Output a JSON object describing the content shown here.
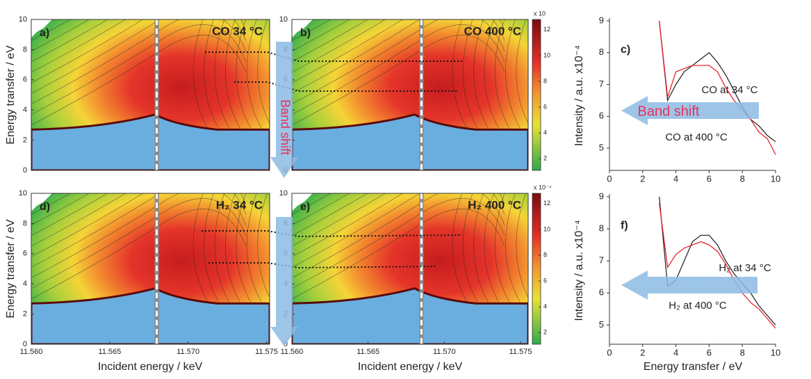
{
  "chart_data": [
    {
      "type": "contour",
      "panel_label": "a)",
      "title": "CO 34 °C",
      "ylabel": "Energy transfer / eV",
      "annotation": "Band shift",
      "xlim": [
        11.56,
        11.5752
      ],
      "ylim": [
        0,
        10
      ],
      "yticks": [
        0,
        2,
        4,
        6,
        8,
        10
      ],
      "marker_x": 11.568
    },
    {
      "type": "contour",
      "panel_label": "b)",
      "title": "CO 400 °C",
      "xlim": [
        11.56,
        11.5755
      ],
      "ylim": [
        0,
        10
      ],
      "yticks": [
        0,
        2,
        4,
        6,
        8,
        10
      ],
      "marker_x": 11.5685,
      "colorbar": {
        "label": "x 10",
        "lim": [
          1.1,
          12.8
        ],
        "ticks": [
          2,
          4,
          6,
          8,
          10,
          12
        ]
      }
    },
    {
      "type": "line",
      "panel_label": "c)",
      "ylabel": "Intensity / a.u. x10⁻⁴",
      "annotation": "Band shift",
      "x": [
        3,
        3.5,
        4,
        4.5,
        5,
        5.5,
        6,
        6.5,
        7,
        7.5,
        8,
        8.5,
        9,
        9.5,
        10
      ],
      "xlim": [
        0,
        10
      ],
      "xticks": [
        0,
        2,
        4,
        6,
        8,
        10
      ],
      "ylim": [
        4.3,
        9
      ],
      "yticks": [
        5,
        6,
        7,
        8,
        9
      ],
      "series": [
        {
          "name": "CO at 34 °C",
          "color": "#1a1a1a",
          "values": [
            9.0,
            6.5,
            7.0,
            7.4,
            7.6,
            7.8,
            8.0,
            7.7,
            7.3,
            6.8,
            6.3,
            5.9,
            5.7,
            5.4,
            5.2
          ]
        },
        {
          "name": "CO at 400 °C",
          "color": "#e8141e",
          "values": [
            9.0,
            6.6,
            7.4,
            7.5,
            7.6,
            7.6,
            7.6,
            7.4,
            6.9,
            6.5,
            6.2,
            5.9,
            5.5,
            5.3,
            4.8
          ]
        }
      ]
    },
    {
      "type": "contour",
      "panel_label": "d)",
      "title": "H₂ 34 °C",
      "ylabel": "Energy transfer / eV",
      "xlabel": "Incident energy / keV",
      "xlim": [
        11.56,
        11.5752
      ],
      "ylim": [
        0,
        10
      ],
      "yticks": [
        0,
        2,
        4,
        6,
        8,
        10
      ],
      "marker_x": 11.568,
      "xticks": [
        {
          "value": 11.56,
          "label": "11.560"
        },
        {
          "value": 11.565,
          "label": "11.565"
        },
        {
          "value": 11.57,
          "label": "11.570"
        },
        {
          "value": 11.575,
          "label": "11.575"
        }
      ]
    },
    {
      "type": "contour",
      "panel_label": "e)",
      "title": "H₂ 400 °C",
      "xlabel": "Incident energy / keV",
      "xlim": [
        11.56,
        11.5755
      ],
      "ylim": [
        0,
        10
      ],
      "yticks": [
        0,
        2,
        4,
        6,
        8,
        10
      ],
      "marker_x": 11.5685,
      "xticks": [
        {
          "value": 11.56,
          "label": "11.560"
        },
        {
          "value": 11.565,
          "label": "11.565"
        },
        {
          "value": 11.57,
          "label": "11.570"
        },
        {
          "value": 11.575,
          "label": "11.575"
        }
      ],
      "colorbar": {
        "label": "x 10⁻⁴",
        "lim": [
          1.1,
          12.8
        ],
        "ticks": [
          2,
          4,
          6,
          8,
          10,
          12
        ]
      }
    },
    {
      "type": "line",
      "panel_label": "f)",
      "ylabel": "Intensity / a.u. x10⁻⁴",
      "xlabel": "Energy transfer / eV",
      "x": [
        3,
        3.5,
        4,
        4.5,
        5,
        5.5,
        6,
        6.5,
        7,
        7.5,
        8,
        8.5,
        9,
        9.5,
        10
      ],
      "xlim": [
        0,
        10
      ],
      "xticks": [
        0,
        2,
        4,
        6,
        8,
        10
      ],
      "ylim": [
        4.4,
        9
      ],
      "yticks": [
        5,
        6,
        7,
        8,
        9
      ],
      "series": [
        {
          "name": "H₂ at 34 °C",
          "color": "#1a1a1a",
          "values": [
            9.0,
            6.2,
            6.4,
            7.0,
            7.6,
            7.8,
            7.8,
            7.5,
            7.0,
            6.6,
            6.3,
            6.0,
            5.6,
            5.3,
            5.0
          ]
        },
        {
          "name": "H₂ at 400 °C",
          "color": "#e8141e",
          "values": [
            8.8,
            6.8,
            7.2,
            7.4,
            7.5,
            7.6,
            7.5,
            7.3,
            6.9,
            6.4,
            6.0,
            5.7,
            5.5,
            5.2,
            4.9
          ]
        }
      ]
    }
  ]
}
